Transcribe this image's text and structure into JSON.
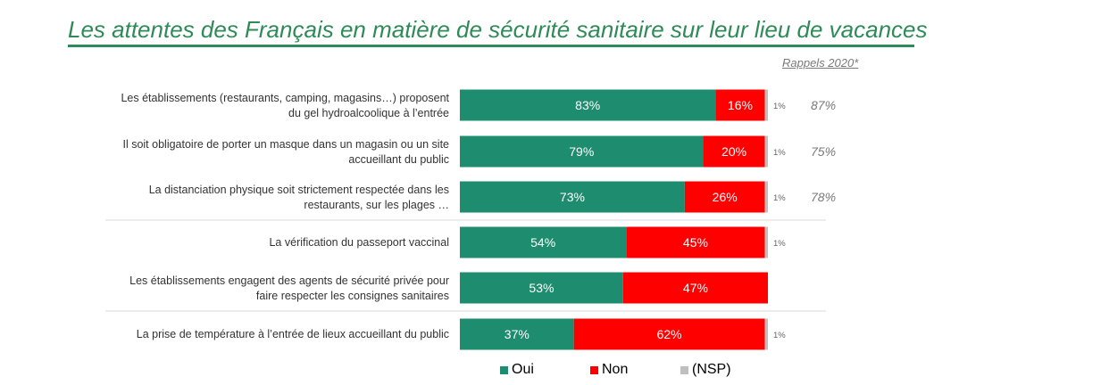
{
  "title": "Les attentes des Français en matière de sécurité sanitaire sur leur lieu de vacances",
  "recall_header": "Rappels 2020*",
  "colors": {
    "oui": "#1E8C6E",
    "non": "#FF0000",
    "nsp": "#BFBFBF",
    "title": "#2E8B57"
  },
  "chart_data": {
    "type": "bar",
    "orientation": "horizontal",
    "stacked": true,
    "categories": [
      [
        "Les établissements (restaurants, camping, magasins…) proposent",
        "du gel hydroalcoolique à l’entrée"
      ],
      [
        "Il soit obligatoire de porter un masque dans un magasin ou un site",
        "accueillant du public"
      ],
      [
        "La distanciation physique soit strictement respectée dans les",
        "restaurants, sur les plages …"
      ],
      [
        "La vérification du passeport vaccinal"
      ],
      [
        "Les établissements engagent des agents de sécurité privée pour",
        "faire respecter les consignes sanitaires"
      ],
      [
        "La prise de température à l’entrée de lieux accueillant du public"
      ]
    ],
    "series": [
      {
        "name": "Oui",
        "values": [
          83,
          79,
          73,
          54,
          53,
          37
        ]
      },
      {
        "name": "Non",
        "values": [
          16,
          20,
          26,
          45,
          47,
          62
        ]
      },
      {
        "name": "(NSP)",
        "values": [
          1,
          1,
          1,
          1,
          0,
          1
        ]
      }
    ],
    "value_labels": {
      "oui": [
        "83%",
        "79%",
        "73%",
        "54%",
        "53%",
        "37%"
      ],
      "non": [
        "16%",
        "20%",
        "26%",
        "45%",
        "47%",
        "62%"
      ],
      "nsp": [
        "1%",
        "1%",
        "1%",
        "1%",
        "",
        "1%"
      ]
    },
    "recall_2020": [
      "87%",
      "75%",
      "78%",
      "",
      "",
      ""
    ],
    "legend": [
      "Oui",
      "Non",
      "(NSP)"
    ],
    "legend_position": "bottom",
    "xlim": [
      0,
      100
    ]
  }
}
